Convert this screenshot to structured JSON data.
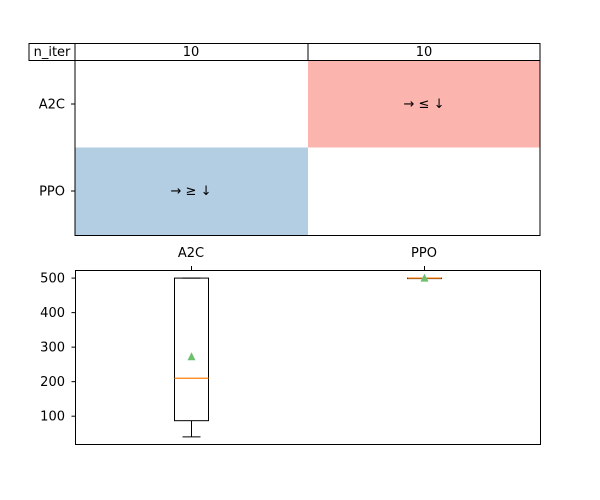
{
  "colors": {
    "win_upper": "#fcb4ae",
    "win_lower": "#b3cde3",
    "median": "#ff7f0e",
    "mean_marker": "#6dbf6d",
    "frame": "#000000"
  },
  "chart_data": [
    {
      "type": "heatmap",
      "title": "",
      "header_label": "n_iter",
      "header_values": [
        "10",
        "10"
      ],
      "row_labels": [
        "A2C",
        "PPO"
      ],
      "column_labels": [
        "A2C",
        "PPO"
      ],
      "cells": [
        {
          "row": "A2C",
          "col": "A2C",
          "text": "",
          "color": "none"
        },
        {
          "row": "A2C",
          "col": "PPO",
          "text": "→ ≤ ↓",
          "color": "win_upper"
        },
        {
          "row": "PPO",
          "col": "A2C",
          "text": "→ ≥ ↓",
          "color": "win_lower"
        },
        {
          "row": "PPO",
          "col": "PPO",
          "text": "",
          "color": "none"
        }
      ]
    },
    {
      "type": "box",
      "categories": [
        "A2C",
        "PPO"
      ],
      "ylim": [
        18,
        522
      ],
      "yticks": [
        100,
        200,
        300,
        400,
        500
      ],
      "series": [
        {
          "category": "A2C",
          "whisker_low": 40,
          "q1": 87,
          "median": 210,
          "q3": 500,
          "whisker_high": 500,
          "mean": 272
        },
        {
          "category": "PPO",
          "whisker_low": 499,
          "q1": 499,
          "median": 500,
          "q3": 500,
          "whisker_high": 500,
          "mean": 500
        }
      ]
    }
  ]
}
